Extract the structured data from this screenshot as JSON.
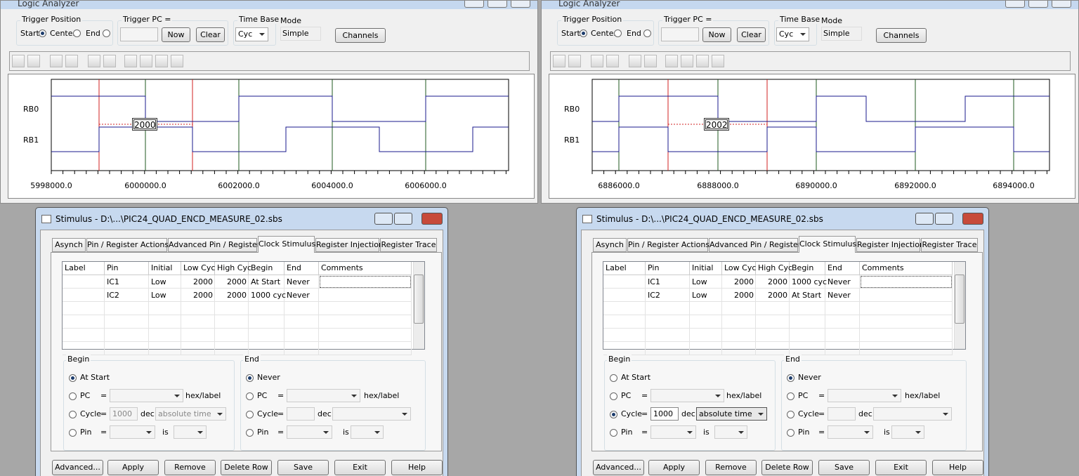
{
  "panels": [
    {
      "analyzer": {
        "title": "Logic Analyzer",
        "trigger_position": {
          "label": "Trigger Position",
          "options": [
            {
              "label": "Start",
              "checked": true
            },
            {
              "label": "Center",
              "checked": false
            },
            {
              "label": "End",
              "checked": false
            }
          ]
        },
        "trigger_pc": {
          "label": "Trigger PC =",
          "buttons": [
            "Now",
            "Clear"
          ]
        },
        "time_base": {
          "label": "Time Base",
          "value": "Cyc"
        },
        "mode": {
          "label": "Mode",
          "value": "Simple"
        },
        "channels_button": "Channels",
        "channels": [
          "RB0",
          "RB1"
        ],
        "x_ticks": [
          "5998000.0",
          "6000000.0",
          "6002000.0",
          "6004000.0",
          "6006000.0"
        ],
        "cursor_label": "2000"
      },
      "stimulus": {
        "title": "Stimulus - D:\\...\\PIC24_QUAD_ENCD_MEASURE_02.sbs",
        "tabs": [
          "Asynch",
          "Pin / Register Actions",
          "Advanced Pin / Register",
          "Clock Stimulus",
          "Register Injection",
          "Register Trace"
        ],
        "table": {
          "columns": [
            "Label",
            "Pin",
            "Initial",
            "Low Cyc",
            "High Cyc",
            "Begin",
            "End",
            "Comments"
          ],
          "rows": [
            {
              "pin": "IC1",
              "initial": "Low",
              "low_cyc": 2000,
              "high_cyc": 2000,
              "begin": "At Start",
              "end": "Never"
            },
            {
              "pin": "IC2",
              "initial": "Low",
              "low_cyc": 2000,
              "high_cyc": 2000,
              "begin": "1000 cyc",
              "end": "Never"
            }
          ]
        },
        "begin": {
          "title": "Begin",
          "options": [
            {
              "label": "At Start",
              "checked": true
            },
            {
              "label": "PC",
              "eq": "=",
              "suffix": "hex/label"
            },
            {
              "label": "Cycle",
              "eq": "=",
              "field": 1000,
              "suffix": "dec",
              "dropdown": "absolute time"
            },
            {
              "label": "Pin",
              "eq": "=",
              "suffix": "is"
            }
          ]
        },
        "end": {
          "title": "End",
          "options": [
            {
              "label": "Never",
              "checked": true
            },
            {
              "label": "PC",
              "eq": "=",
              "suffix": "hex/label"
            },
            {
              "label": "Cycle",
              "eq": "=",
              "suffix": "dec"
            },
            {
              "label": "Pin",
              "eq": "=",
              "suffix": "is"
            }
          ]
        },
        "buttons": [
          "Advanced...",
          "Apply",
          "Remove",
          "Delete Row",
          "Save",
          "Exit",
          "Help"
        ]
      }
    },
    {
      "analyzer": {
        "title": "Logic Analyzer",
        "trigger_position": {
          "label": "Trigger Position",
          "options": [
            {
              "label": "Start",
              "checked": true
            },
            {
              "label": "Center",
              "checked": false
            },
            {
              "label": "End",
              "checked": false
            }
          ]
        },
        "trigger_pc": {
          "label": "Trigger PC =",
          "buttons": [
            "Now",
            "Clear"
          ]
        },
        "time_base": {
          "label": "Time Base",
          "value": "Cyc"
        },
        "mode": {
          "label": "Mode",
          "value": "Simple"
        },
        "channels_button": "Channels",
        "channels": [
          "RB0",
          "RB1"
        ],
        "x_ticks": [
          "6886000.0",
          "6888000.0",
          "6890000.0",
          "6892000.0",
          "6894000.0"
        ],
        "cursor_label": "2002"
      },
      "stimulus": {
        "title": "Stimulus - D:\\...\\PIC24_QUAD_ENCD_MEASURE_02.sbs",
        "tabs": [
          "Asynch",
          "Pin / Register Actions",
          "Advanced Pin / Register",
          "Clock Stimulus",
          "Register Injection",
          "Register Trace"
        ],
        "table": {
          "columns": [
            "Label",
            "Pin",
            "Initial",
            "Low Cyc",
            "High Cyc",
            "Begin",
            "End",
            "Comments"
          ],
          "rows": [
            {
              "pin": "IC1",
              "initial": "Low",
              "low_cyc": 2000,
              "high_cyc": 2000,
              "begin": "1000 cyc",
              "end": "Never"
            },
            {
              "pin": "IC2",
              "initial": "Low",
              "low_cyc": 2000,
              "high_cyc": 2000,
              "begin": "At Start",
              "end": "Never"
            }
          ]
        },
        "begin": {
          "title": "Begin",
          "options": [
            {
              "label": "At Start",
              "checked": false
            },
            {
              "label": "PC",
              "eq": "=",
              "suffix": "hex/label"
            },
            {
              "label": "Cycle",
              "eq": "=",
              "field": 1000,
              "suffix": "dec",
              "dropdown": "absolute time",
              "checked": true
            },
            {
              "label": "Pin",
              "eq": "=",
              "suffix": "is"
            }
          ]
        },
        "end": {
          "title": "End",
          "options": [
            {
              "label": "Never",
              "checked": true
            },
            {
              "label": "PC",
              "eq": "=",
              "suffix": "hex/label"
            },
            {
              "label": "Cycle",
              "eq": "=",
              "suffix": "dec"
            },
            {
              "label": "Pin",
              "eq": "=",
              "suffix": "is"
            }
          ]
        },
        "buttons": [
          "Advanced...",
          "Apply",
          "Remove",
          "Delete Row",
          "Save",
          "Exit",
          "Help"
        ]
      }
    }
  ]
}
